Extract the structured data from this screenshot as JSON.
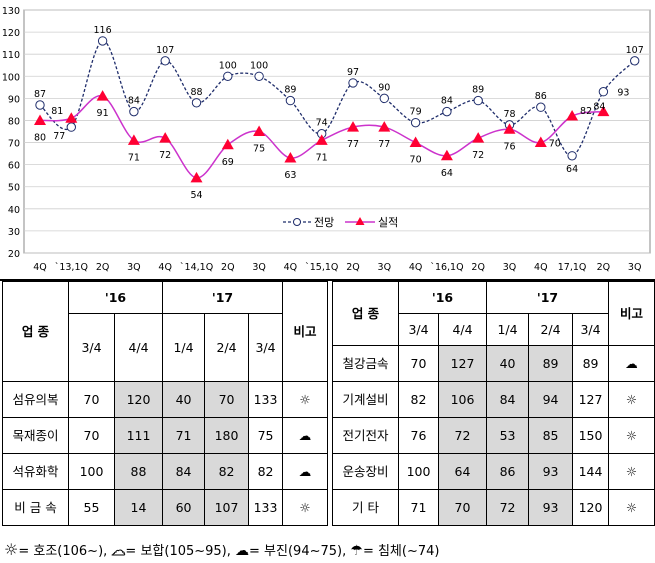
{
  "chart_data": {
    "type": "line",
    "ylim": [
      20,
      130
    ],
    "yticks": [
      20,
      30,
      40,
      50,
      60,
      70,
      80,
      90,
      100,
      110,
      120,
      130
    ],
    "categories": [
      "4Q",
      "`13,1Q",
      "2Q",
      "3Q",
      "4Q",
      "`14,1Q",
      "2Q",
      "3Q",
      "4Q",
      "`15,1Q",
      "2Q",
      "3Q",
      "4Q",
      "`16,1Q",
      "2Q",
      "3Q",
      "4Q",
      "17,1Q",
      "2Q",
      "3Q"
    ],
    "series": [
      {
        "name": "전망",
        "style": "dashed-circle",
        "color": "#1f2d6b",
        "values": [
          87,
          77,
          116,
          84,
          107,
          88,
          100,
          100,
          89,
          74,
          97,
          90,
          79,
          84,
          89,
          78,
          86,
          64,
          93,
          107
        ],
        "labels": [
          "87",
          "77",
          "116",
          "84",
          "107",
          "88",
          "100",
          "100",
          "89",
          "74",
          "97",
          "90",
          "79",
          "84",
          "89",
          "78",
          "86",
          "64",
          "93",
          "107"
        ]
      },
      {
        "name": "실적",
        "style": "solid-triangle",
        "color": "#cc33cc",
        "values": [
          80,
          81,
          91,
          71,
          72,
          54,
          69,
          75,
          63,
          71,
          77,
          77,
          70,
          64,
          72,
          76,
          70,
          82,
          84,
          null
        ],
        "labels": [
          "80",
          "81",
          "91",
          "71",
          "72",
          "54",
          "69",
          "75",
          "63",
          "71",
          "77",
          "77",
          "70",
          "64",
          "72",
          "76",
          "70",
          "82",
          "84",
          ""
        ]
      }
    ]
  },
  "table": {
    "industry_header": "업  종",
    "note_header": "비고",
    "year16": "'16",
    "year17": "'17",
    "quarters": [
      "3/4",
      "4/4",
      "1/4",
      "2/4",
      "3/4"
    ],
    "left_rows": [
      {
        "name": "섬유의복",
        "values": [
          "70",
          "120",
          "40",
          "70",
          "133"
        ],
        "icon": "sun-icon",
        "glyph": "☼"
      },
      {
        "name": "목재종이",
        "values": [
          "70",
          "111",
          "71",
          "180",
          "75"
        ],
        "icon": "cloud-dark-icon",
        "glyph": "☁"
      },
      {
        "name": "석유화학",
        "values": [
          "100",
          "88",
          "84",
          "82",
          "82"
        ],
        "icon": "cloud-dark-icon",
        "glyph": "☁"
      },
      {
        "name": "비 금 속",
        "values": [
          "55",
          "14",
          "60",
          "107",
          "133"
        ],
        "icon": "sun-icon",
        "glyph": "☼"
      }
    ],
    "right_rows": [
      {
        "name": "철강금속",
        "values": [
          "70",
          "127",
          "40",
          "89",
          "89"
        ],
        "icon": "cloud-dark-icon",
        "glyph": "☁"
      },
      {
        "name": "기계설비",
        "values": [
          "82",
          "106",
          "84",
          "94",
          "127"
        ],
        "icon": "sun-icon",
        "glyph": "☼"
      },
      {
        "name": "전기전자",
        "values": [
          "76",
          "72",
          "53",
          "85",
          "150"
        ],
        "icon": "sun-icon",
        "glyph": "☼"
      },
      {
        "name": "운송장비",
        "values": [
          "100",
          "64",
          "86",
          "93",
          "144"
        ],
        "icon": "sun-icon",
        "glyph": "☼"
      },
      {
        "name": "기  타",
        "values": [
          "71",
          "70",
          "72",
          "93",
          "120"
        ],
        "icon": "sun-icon",
        "glyph": "☼"
      }
    ]
  },
  "legend": {
    "sun_glyph": "☼",
    "sun_text": " = 호조(106~), ",
    "cloud_glyph": "☁",
    "cloud_text": " = 보합(105~95), ",
    "dark_glyph": "☁",
    "dark_text": " = 부진(94~75), ",
    "rain_glyph": "☂",
    "rain_text": " = 침체(~74)"
  }
}
